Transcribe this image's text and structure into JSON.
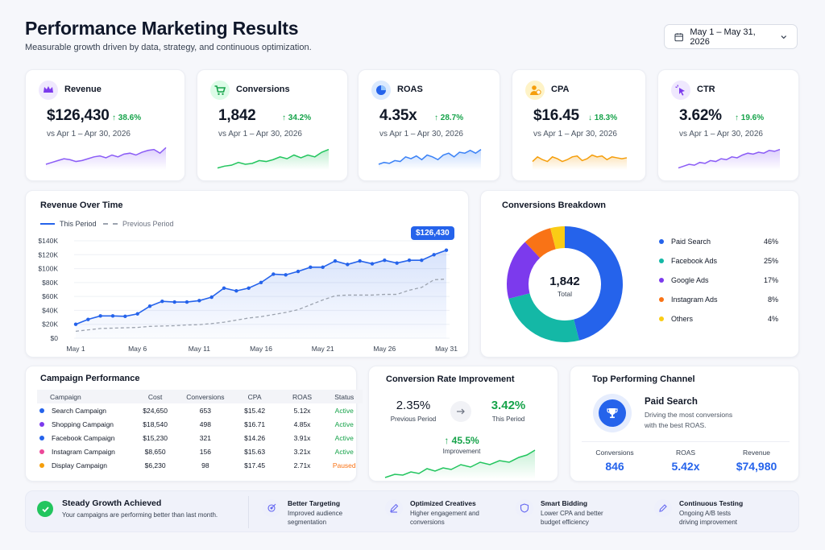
{
  "header": {
    "title": "Performance Marketing Results",
    "subtitle": "Measurable growth driven by data, strategy, and continuous optimization.",
    "date_range": "May 1 – May 31, 2026"
  },
  "kpis": [
    {
      "label": "Revenue",
      "value": "$126,430",
      "change": "↑ 38.6%",
      "compare": "vs Apr 1 – Apr 30, 2026",
      "color": "#8b5cf6",
      "icon": "crown-icon"
    },
    {
      "label": "Conversions",
      "value": "1,842",
      "change": "↑ 34.2%",
      "compare": "vs Apr 1 – Apr 30, 2026",
      "color": "#22c55e",
      "icon": "cart-icon"
    },
    {
      "label": "ROAS",
      "value": "4.35x",
      "change": "↑ 28.7%",
      "compare": "vs Apr 1 – Apr 30, 2026",
      "color": "#3b82f6",
      "icon": "pie-icon"
    },
    {
      "label": "CPA",
      "value": "$16.45",
      "change": "↓ 18.3%",
      "compare": "vs Apr 1 – Apr 30, 2026",
      "color": "#f59e0b",
      "icon": "user-dollar-icon"
    },
    {
      "label": "CTR",
      "value": "3.62%",
      "change": "↑ 19.6%",
      "compare": "vs Apr 1 – Apr 30, 2026",
      "color": "#8b5cf6",
      "icon": "cursor-click-icon"
    }
  ],
  "revenue_chart": {
    "title": "Revenue Over Time",
    "legend_this": "This Period",
    "legend_prev": "Previous Period",
    "callout": "$126,430"
  },
  "conversions": {
    "title": "Conversions Breakdown",
    "center_value": "1,842",
    "center_label": "Total",
    "items": [
      {
        "name": "Paid Search",
        "pct": "46%",
        "color": "#2563eb"
      },
      {
        "name": "Facebook Ads",
        "pct": "25%",
        "color": "#14b8a6"
      },
      {
        "name": "Google Ads",
        "pct": "17%",
        "color": "#7c3aed"
      },
      {
        "name": "Instagram Ads",
        "pct": "8%",
        "color": "#f97316"
      },
      {
        "name": "Others",
        "pct": "4%",
        "color": "#facc15"
      }
    ]
  },
  "campaign": {
    "title": "Campaign Performance",
    "headers": [
      "Campaign",
      "Cost",
      "Conversions",
      "CPA",
      "ROAS",
      "Status"
    ],
    "rows": [
      {
        "name": "Search Campaign",
        "cost": "$24,650",
        "conv": "653",
        "cpa": "$15.42",
        "roas": "5.12x",
        "status": "Active",
        "color": "#2563eb",
        "status_color": "#16a34a"
      },
      {
        "name": "Shopping Campaign",
        "cost": "$18,540",
        "conv": "498",
        "cpa": "$16.71",
        "roas": "4.85x",
        "status": "Active",
        "color": "#7c3aed",
        "status_color": "#16a34a"
      },
      {
        "name": "Facebook Campaign",
        "cost": "$15,230",
        "conv": "321",
        "cpa": "$14.26",
        "roas": "3.91x",
        "status": "Active",
        "color": "#2563eb",
        "status_color": "#16a34a"
      },
      {
        "name": "Instagram Campaign",
        "cost": "$8,650",
        "conv": "156",
        "cpa": "$15.63",
        "roas": "3.21x",
        "status": "Active",
        "color": "#ec4899",
        "status_color": "#16a34a"
      },
      {
        "name": "Display Campaign",
        "cost": "$6,230",
        "conv": "98",
        "cpa": "$17.45",
        "roas": "2.71x",
        "status": "Paused",
        "color": "#f59e0b",
        "status_color": "#f97316"
      }
    ]
  },
  "conv_rate": {
    "title": "Conversion Rate Improvement",
    "prev_value": "2.35%",
    "prev_label": "Previous Period",
    "this_value": "3.42%",
    "this_label": "This Period",
    "improvement": "↑ 45.5%",
    "improvement_label": "Improvement"
  },
  "top_channel": {
    "title": "Top Performing Channel",
    "name": "Paid Search",
    "desc": "Driving the most conversions with the best ROAS.",
    "stats": [
      {
        "label": "Conversions",
        "value": "846"
      },
      {
        "label": "ROAS",
        "value": "5.42x"
      },
      {
        "label": "Revenue",
        "value": "$74,980"
      }
    ]
  },
  "footer": {
    "headline": "Steady Growth Achieved",
    "headline_sub": "Your campaigns are performing better than last month.",
    "items": [
      {
        "title": "Better Targeting",
        "desc": "Improved audience segmentation",
        "icon": "target-icon"
      },
      {
        "title": "Optimized Creatives",
        "desc": "Higher engagement and conversions",
        "icon": "pen-icon"
      },
      {
        "title": "Smart Bidding",
        "desc": "Lower CPA and better budget efficiency",
        "icon": "shield-icon"
      },
      {
        "title": "Continuous Testing",
        "desc": "Ongoing A/B tests driving improvement",
        "icon": "pencil-icon"
      }
    ]
  },
  "chart_data": [
    {
      "type": "line",
      "title": "Revenue Over Time",
      "x": [
        "May 1",
        "May 2",
        "May 3",
        "May 4",
        "May 5",
        "May 6",
        "May 7",
        "May 8",
        "May 9",
        "May 10",
        "May 11",
        "May 12",
        "May 13",
        "May 14",
        "May 15",
        "May 16",
        "May 17",
        "May 18",
        "May 19",
        "May 20",
        "May 21",
        "May 22",
        "May 23",
        "May 24",
        "May 25",
        "May 26",
        "May 27",
        "May 28",
        "May 29",
        "May 30",
        "May 31"
      ],
      "xticks": [
        "May 1",
        "May 6",
        "May 11",
        "May 16",
        "May 21",
        "May 26",
        "May 31"
      ],
      "yticks": [
        "$0",
        "$20K",
        "$40K",
        "$60K",
        "$80K",
        "$100K",
        "$120K",
        "$140K"
      ],
      "ylim": [
        0,
        140000
      ],
      "series": [
        {
          "name": "This Period",
          "color": "#2563eb",
          "values": [
            20000,
            27000,
            32000,
            32000,
            31500,
            35000,
            46000,
            53000,
            52000,
            52000,
            54000,
            59000,
            72000,
            68000,
            72000,
            80000,
            92000,
            91000,
            96000,
            102000,
            102000,
            111000,
            106000,
            111000,
            107000,
            112000,
            108000,
            112000,
            112000,
            120000,
            126430
          ]
        },
        {
          "name": "Previous Period",
          "color": "#9ca3af",
          "values": [
            10000,
            12000,
            14000,
            14500,
            15000,
            15500,
            17000,
            17500,
            18000,
            19000,
            19500,
            21000,
            23000,
            26000,
            29000,
            31000,
            34000,
            37000,
            41000,
            48000,
            55000,
            61000,
            62000,
            62000,
            62000,
            63000,
            63000,
            69000,
            73000,
            84000,
            85000
          ]
        }
      ]
    },
    {
      "type": "pie",
      "title": "Conversions Breakdown",
      "categories": [
        "Paid Search",
        "Facebook Ads",
        "Google Ads",
        "Instagram Ads",
        "Others"
      ],
      "values": [
        46,
        25,
        17,
        8,
        4
      ]
    }
  ]
}
